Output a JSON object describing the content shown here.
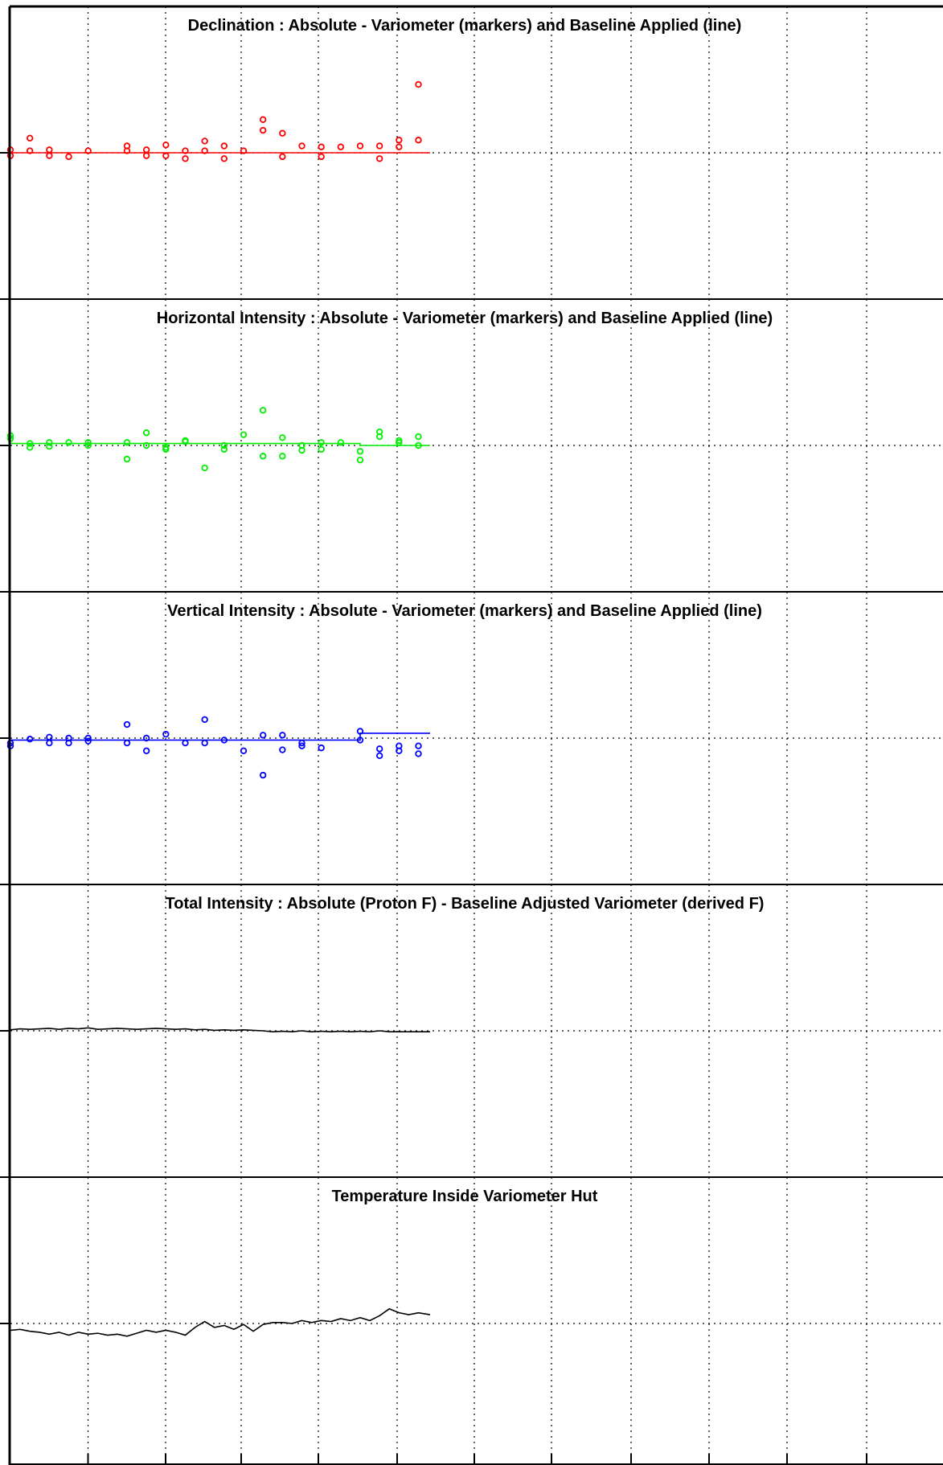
{
  "chart_data": [
    {
      "type": "scatter",
      "title": "Declination : Absolute - Variometer (markers) and Baseline Applied (line)",
      "color": "#ff0000",
      "baseline": {
        "x": [
          0,
          21.6
        ],
        "y": [
          0,
          0
        ]
      },
      "markers": {
        "x": [
          0,
          0,
          1,
          1,
          2,
          2,
          3,
          4,
          6,
          6,
          7,
          7,
          8,
          8,
          9,
          9,
          10,
          10,
          11,
          11,
          12,
          13,
          13,
          14,
          14,
          15,
          16,
          16,
          17,
          18,
          19,
          19,
          20,
          20,
          21,
          21
        ],
        "y": [
          0.3,
          -0.3,
          0.2,
          1.5,
          -0.3,
          0.3,
          -0.4,
          0.2,
          0.2,
          0.7,
          -0.3,
          0.3,
          -0.3,
          0.8,
          -0.6,
          0.2,
          0.2,
          1.2,
          0.7,
          -0.6,
          0.2,
          2.3,
          3.4,
          -0.4,
          2.0,
          0.7,
          -0.4,
          0.6,
          0.6,
          0.7,
          -0.6,
          0.7,
          0.6,
          1.3,
          1.3,
          7.0
        ]
      },
      "ylim": [
        -15,
        15
      ]
    },
    {
      "type": "scatter",
      "title": "Horizontal Intensity : Absolute - Variometer (markers) and Baseline Applied (line)",
      "color": "#00ee00",
      "baseline": {
        "x": [
          0,
          18,
          18,
          21.6
        ],
        "y": [
          0.2,
          0.2,
          0,
          0
        ]
      },
      "markers": {
        "x": [
          0,
          0,
          1,
          1,
          2,
          2,
          3,
          4,
          4,
          6,
          6,
          7,
          7,
          8,
          8,
          9,
          9,
          10,
          11,
          11,
          12,
          13,
          13,
          14,
          14,
          15,
          15,
          16,
          16,
          17,
          18,
          18,
          19,
          19,
          20,
          20,
          21,
          21
        ],
        "y": [
          0.7,
          1.0,
          -0.2,
          0.2,
          0.3,
          -0.1,
          0.3,
          0,
          0.3,
          0.3,
          -1.4,
          0,
          1.3,
          -0.4,
          -0.2,
          0.4,
          0.5,
          -2.3,
          0,
          -0.4,
          1.1,
          -1.1,
          3.6,
          -1.1,
          0.8,
          0,
          -0.5,
          0.3,
          -0.4,
          0.3,
          -0.6,
          -1.5,
          1.4,
          0.9,
          0.5,
          0.3,
          0,
          0.9
        ]
      },
      "ylim": [
        -15,
        15
      ]
    },
    {
      "type": "scatter",
      "title": "Vertical Intensity : Absolute - Variometer (markers) and Baseline Applied (line)",
      "color": "#0000ff",
      "baseline": {
        "x": [
          0,
          18,
          18,
          21.6
        ],
        "y": [
          -0.2,
          -0.2,
          0.5,
          0.5
        ]
      },
      "markers": {
        "x": [
          0,
          0,
          1,
          2,
          2,
          3,
          3,
          4,
          4,
          6,
          6,
          7,
          7,
          8,
          9,
          10,
          10,
          11,
          12,
          13,
          13,
          14,
          14,
          15,
          15,
          16,
          18,
          18,
          19,
          19,
          20,
          20,
          21,
          21
        ],
        "y": [
          -0.5,
          -0.8,
          -0.1,
          0.1,
          -0.5,
          0,
          -0.5,
          0,
          -0.3,
          1.4,
          -0.5,
          0,
          -1.3,
          0.4,
          -0.5,
          1.9,
          -0.5,
          -0.2,
          -1.3,
          0.3,
          -3.8,
          -1.2,
          0.3,
          -0.8,
          -0.5,
          -1.0,
          0.7,
          -0.2,
          -1.1,
          -1.8,
          -1.3,
          -0.8,
          -0.8,
          -1.6
        ]
      },
      "ylim": [
        -15,
        15
      ]
    },
    {
      "type": "line",
      "title": "Total Intensity : Absolute (Proton F) - Baseline Adjusted Variometer (derived F)",
      "color": "#000000",
      "series": [
        {
          "x": [
            0,
            0.5,
            1,
            1.5,
            2,
            2.5,
            3,
            3.5,
            4,
            4.5,
            5,
            5.5,
            6,
            6.5,
            7,
            7.5,
            8,
            8.5,
            9,
            9.5,
            10,
            10.5,
            11,
            11.5,
            12,
            12.5,
            13,
            13.5,
            14,
            14.5,
            15,
            15.5,
            16,
            16.5,
            17,
            17.5,
            18,
            18.5,
            19,
            19.5,
            20,
            20.5,
            21,
            21.6
          ],
          "y": [
            0.1,
            0.2,
            0.15,
            0.2,
            0.25,
            0.15,
            0.25,
            0.2,
            0.3,
            0.15,
            0.2,
            0.25,
            0.2,
            0.15,
            0.2,
            0.25,
            0.2,
            0.15,
            0.2,
            0.1,
            0.15,
            0.05,
            0.1,
            0.05,
            0.1,
            0.05,
            0,
            -0.1,
            -0.05,
            -0.1,
            0,
            -0.1,
            -0.05,
            -0.1,
            -0.05,
            -0.1,
            -0.05,
            -0.1,
            0,
            -0.1,
            -0.1,
            -0.1,
            -0.1,
            -0.1
          ]
        }
      ],
      "ylim": [
        -15,
        15
      ]
    },
    {
      "type": "line",
      "title": "Temperature Inside Variometer Hut",
      "color": "#000000",
      "series": [
        {
          "x": [
            0,
            0.5,
            1,
            1.5,
            2,
            2.5,
            3,
            3.5,
            4,
            4.5,
            5,
            5.5,
            6,
            6.5,
            7,
            7.5,
            8,
            8.5,
            9,
            9.5,
            10,
            10.5,
            11,
            11.5,
            12,
            12.5,
            13,
            13.5,
            14,
            14.5,
            15,
            15.5,
            16,
            16.5,
            17,
            17.5,
            18,
            18.5,
            19,
            19.5,
            20,
            20.5,
            21,
            21.6
          ],
          "y": [
            -0.7,
            -0.6,
            -0.8,
            -0.9,
            -1.1,
            -0.9,
            -1.2,
            -0.9,
            -1.1,
            -1.0,
            -1.2,
            -1.1,
            -1.3,
            -1.0,
            -0.7,
            -0.9,
            -0.7,
            -0.9,
            -1.2,
            -0.4,
            0.2,
            -0.4,
            -0.2,
            -0.6,
            -0.1,
            -0.8,
            -0.1,
            0.1,
            0.1,
            0.0,
            0.3,
            0.1,
            0.3,
            0.2,
            0.5,
            0.3,
            0.6,
            0.3,
            0.8,
            1.5,
            1.1,
            0.9,
            1.1,
            0.9
          ]
        }
      ],
      "ylim": [
        -15,
        15
      ]
    }
  ]
}
